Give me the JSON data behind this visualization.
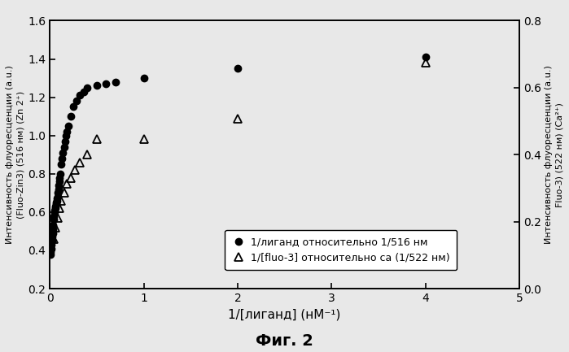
{
  "title": "Фиг. 2",
  "xlabel": "1/[лиганд] (нМ⁻¹)",
  "ylabel_left": "Интенсивность флуоресценции (a.u.)\n(Fluo-Zin3) (516 нм) (Zn 2⁺)",
  "ylabel_right": "Интенсивность флуоресценции (a.u.)\nFluo-3) (522 нм) (Ca²⁺)",
  "xlim": [
    0,
    5
  ],
  "ylim_left": [
    0.2,
    1.6
  ],
  "ylim_right": [
    0.0,
    0.8
  ],
  "xticks": [
    0,
    1,
    2,
    3,
    4,
    5
  ],
  "yticks_left": [
    0.2,
    0.4,
    0.6,
    0.8,
    1.0,
    1.2,
    1.4,
    1.6
  ],
  "yticks_right": [
    0.0,
    0.2,
    0.4,
    0.6,
    0.8
  ],
  "legend_label1": "1/лиганд относительно 1/516 нм",
  "legend_label2": "1/[fluo-3] относительно ca (1/522 нм)",
  "dots_x": [
    0.005,
    0.008,
    0.012,
    0.016,
    0.02,
    0.024,
    0.028,
    0.032,
    0.036,
    0.04,
    0.044,
    0.048,
    0.052,
    0.056,
    0.06,
    0.064,
    0.068,
    0.072,
    0.076,
    0.08,
    0.085,
    0.09,
    0.095,
    0.1,
    0.105,
    0.11,
    0.12,
    0.13,
    0.14,
    0.15,
    0.16,
    0.17,
    0.18,
    0.2,
    0.22,
    0.25,
    0.28,
    0.32,
    0.36,
    0.4,
    0.5,
    0.6,
    0.7,
    1.0,
    2.0,
    4.0
  ],
  "dots_y": [
    0.38,
    0.39,
    0.41,
    0.43,
    0.45,
    0.47,
    0.49,
    0.51,
    0.53,
    0.56,
    0.58,
    0.6,
    0.61,
    0.62,
    0.63,
    0.64,
    0.65,
    0.66,
    0.67,
    0.68,
    0.7,
    0.72,
    0.74,
    0.76,
    0.78,
    0.8,
    0.85,
    0.88,
    0.91,
    0.94,
    0.97,
    1.0,
    1.02,
    1.05,
    1.1,
    1.15,
    1.18,
    1.21,
    1.23,
    1.25,
    1.26,
    1.27,
    1.28,
    1.3,
    1.35,
    1.41
  ],
  "tri_x": [
    0.04,
    0.06,
    0.08,
    0.1,
    0.12,
    0.15,
    0.18,
    0.22,
    0.27,
    0.32,
    0.4,
    0.5,
    1.0,
    2.0,
    4.0
  ],
  "tri_y": [
    0.46,
    0.52,
    0.57,
    0.62,
    0.66,
    0.7,
    0.75,
    0.78,
    0.82,
    0.86,
    0.9,
    0.98,
    0.98,
    1.09,
    1.38
  ],
  "background_color": "#e8e8e8",
  "plot_bg_color": "#e8e8e8",
  "dot_color": "#000000",
  "tri_color": "#000000",
  "title_fontsize": 14,
  "axis_label_fontsize": 8,
  "tick_fontsize": 10,
  "legend_fontsize": 9
}
